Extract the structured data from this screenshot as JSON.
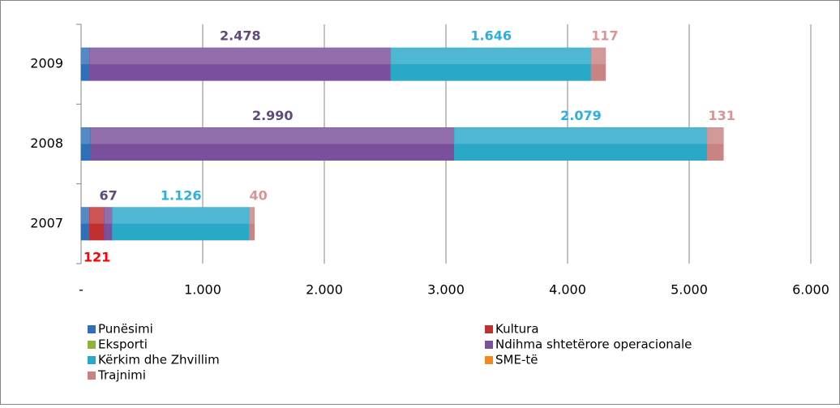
{
  "chart_data": {
    "type": "bar",
    "orientation": "horizontal",
    "stacked": true,
    "categories": [
      "2007",
      "2008",
      "2009"
    ],
    "series": [
      {
        "name": "Punësimi",
        "color": "#2e6fb7",
        "values": [
          70,
          80,
          70
        ]
      },
      {
        "name": "Kultura",
        "color": "#c0302f",
        "label_color": "#ff0000",
        "values": [
          121,
          0,
          0
        ],
        "value_labels": [
          "121",
          null,
          null
        ]
      },
      {
        "name": "Eksporti",
        "color": "#8db33a",
        "values": [
          0,
          0,
          0
        ]
      },
      {
        "name": "Ndihma shtetërore operacionale",
        "color": "#7a4f9c",
        "label_color": "#5f4a7a",
        "values": [
          67,
          2990,
          2478
        ],
        "value_labels": [
          "67",
          "2.990",
          "2.478"
        ]
      },
      {
        "name": "Kërkim dhe Zhvillim",
        "color": "#2aa8c8",
        "label_color": "#2ab0e0",
        "values": [
          1126,
          2079,
          1646
        ],
        "value_labels": [
          "1.126",
          "2.079",
          "1.646"
        ]
      },
      {
        "name": "SME-të",
        "color": "#f08a1e",
        "values": [
          0,
          0,
          0
        ]
      },
      {
        "name": "Trajnimi",
        "color": "#c98383",
        "label_color": "#d99594",
        "values": [
          40,
          131,
          117
        ],
        "value_labels": [
          "40",
          "131",
          "117"
        ]
      }
    ],
    "xlim": [
      0,
      6000
    ],
    "xticks": [
      {
        "value": 0,
        "label": "-"
      },
      {
        "value": 1000,
        "label": "1.000"
      },
      {
        "value": 2000,
        "label": "2.000"
      },
      {
        "value": 3000,
        "label": "3.000"
      },
      {
        "value": 4000,
        "label": "4.000"
      },
      {
        "value": 5000,
        "label": "5.000"
      },
      {
        "value": 6000,
        "label": "6.000"
      }
    ],
    "grid": true,
    "legend": "bottom"
  }
}
